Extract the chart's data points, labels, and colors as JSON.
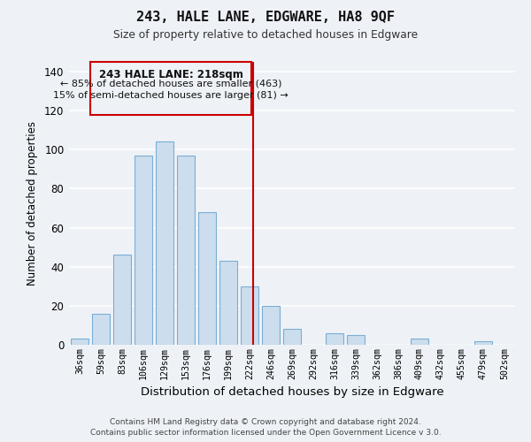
{
  "title": "243, HALE LANE, EDGWARE, HA8 9QF",
  "subtitle": "Size of property relative to detached houses in Edgware",
  "xlabel": "Distribution of detached houses by size in Edgware",
  "ylabel": "Number of detached properties",
  "bar_color": "#ccdded",
  "bar_edge_color": "#7aaed4",
  "bin_labels": [
    "36sqm",
    "59sqm",
    "83sqm",
    "106sqm",
    "129sqm",
    "153sqm",
    "176sqm",
    "199sqm",
    "222sqm",
    "246sqm",
    "269sqm",
    "292sqm",
    "316sqm",
    "339sqm",
    "362sqm",
    "386sqm",
    "409sqm",
    "432sqm",
    "455sqm",
    "479sqm",
    "502sqm"
  ],
  "bar_heights": [
    3,
    16,
    46,
    97,
    104,
    97,
    68,
    43,
    30,
    20,
    8,
    0,
    6,
    5,
    0,
    0,
    3,
    0,
    0,
    2,
    0
  ],
  "vline_x_index": 8.15,
  "vline_color": "#cc0000",
  "ylim": [
    0,
    145
  ],
  "yticks": [
    0,
    20,
    40,
    60,
    80,
    100,
    120,
    140
  ],
  "annotation_title": "243 HALE LANE: 218sqm",
  "annotation_line1": "← 85% of detached houses are smaller (463)",
  "annotation_line2": "15% of semi-detached houses are larger (81) →",
  "footer1": "Contains HM Land Registry data © Crown copyright and database right 2024.",
  "footer2": "Contains public sector information licensed under the Open Government Licence v 3.0.",
  "background_color": "#eef2f7",
  "grid_color": "#ffffff",
  "annotation_box_facecolor": "#eef2f7",
  "annotation_box_edgecolor": "#cc0000"
}
